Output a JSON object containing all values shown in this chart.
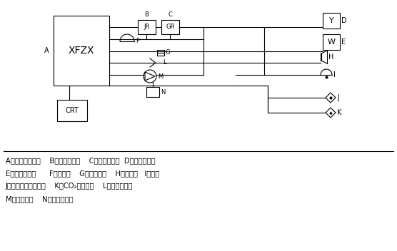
{
  "bg_color": "#ffffff",
  "line_color": "#000000",
  "lw": 0.8,
  "legend_lines": [
    "A、消防控制中心    B、报警控制器    C、楼层显示器  D、感烟探测器",
    "E、感温探测器      F、通风口    G、消防广播    H、扬声器   I、电话",
    "J、自动喷水灭火系统    K、CO₂灭火系统    L、疏散指示灯",
    "M、消防水泵    N、防火卷帘门"
  ]
}
